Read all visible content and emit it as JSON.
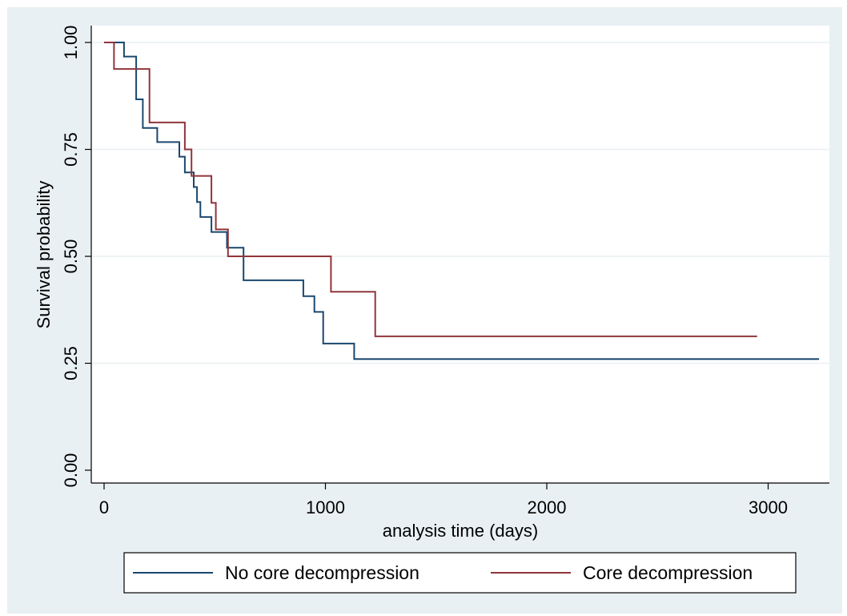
{
  "chart_data": {
    "type": "line",
    "subtype": "kaplan-meier step",
    "title": "",
    "xlabel": "analysis time (days)",
    "ylabel": "Survival probability",
    "xlim": [
      0,
      3250
    ],
    "ylim": [
      0,
      1
    ],
    "x_ticks": [
      0,
      1000,
      2000,
      3000
    ],
    "x_tick_labels": [
      "0",
      "1000",
      "2000",
      "3000"
    ],
    "y_ticks": [
      0,
      0.25,
      0.5,
      0.75,
      1.0
    ],
    "y_tick_labels": [
      "0.00",
      "0.25",
      "0.50",
      "0.75",
      "1.00"
    ],
    "grid": "horizontal",
    "legend_position": "bottom",
    "series": [
      {
        "name": "No core decompression",
        "color": "#1a476f",
        "points": [
          [
            0,
            1.0
          ],
          [
            90,
            1.0
          ],
          [
            90,
            0.967
          ],
          [
            145,
            0.967
          ],
          [
            145,
            0.867
          ],
          [
            175,
            0.867
          ],
          [
            175,
            0.8
          ],
          [
            240,
            0.8
          ],
          [
            240,
            0.767
          ],
          [
            340,
            0.767
          ],
          [
            340,
            0.733
          ],
          [
            365,
            0.733
          ],
          [
            365,
            0.696
          ],
          [
            405,
            0.696
          ],
          [
            405,
            0.662
          ],
          [
            420,
            0.662
          ],
          [
            420,
            0.627
          ],
          [
            435,
            0.627
          ],
          [
            435,
            0.592
          ],
          [
            485,
            0.592
          ],
          [
            485,
            0.557
          ],
          [
            555,
            0.557
          ],
          [
            555,
            0.52
          ],
          [
            630,
            0.52
          ],
          [
            630,
            0.444
          ],
          [
            900,
            0.444
          ],
          [
            900,
            0.407
          ],
          [
            950,
            0.407
          ],
          [
            950,
            0.37
          ],
          [
            990,
            0.37
          ],
          [
            990,
            0.296
          ],
          [
            1130,
            0.296
          ],
          [
            1130,
            0.26
          ],
          [
            3230,
            0.26
          ]
        ]
      },
      {
        "name": "Core decompression",
        "color": "#90353b",
        "points": [
          [
            0,
            1.0
          ],
          [
            45,
            1.0
          ],
          [
            45,
            0.938
          ],
          [
            205,
            0.938
          ],
          [
            205,
            0.813
          ],
          [
            365,
            0.813
          ],
          [
            365,
            0.75
          ],
          [
            395,
            0.75
          ],
          [
            395,
            0.688
          ],
          [
            485,
            0.688
          ],
          [
            485,
            0.625
          ],
          [
            505,
            0.625
          ],
          [
            505,
            0.563
          ],
          [
            560,
            0.563
          ],
          [
            560,
            0.5
          ],
          [
            1025,
            0.5
          ],
          [
            1025,
            0.417
          ],
          [
            1225,
            0.417
          ],
          [
            1225,
            0.313
          ],
          [
            2950,
            0.313
          ]
        ]
      }
    ]
  }
}
